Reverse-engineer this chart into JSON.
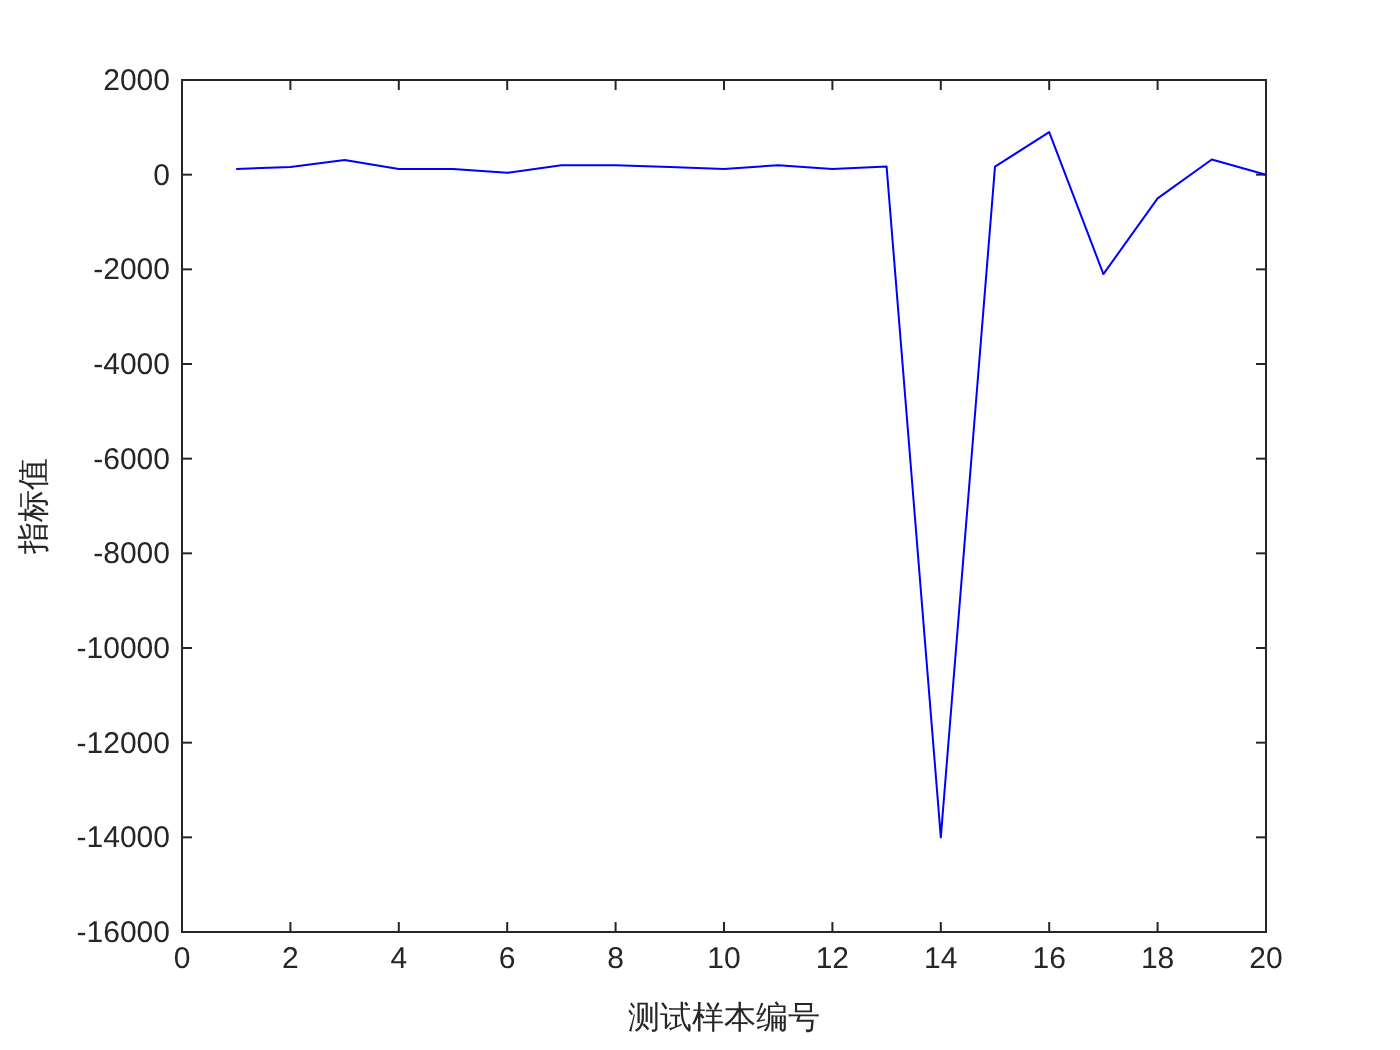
{
  "chart_data": {
    "type": "line",
    "xlabel": "测试样本编号",
    "ylabel": "指标值",
    "x": [
      1,
      2,
      3,
      4,
      5,
      6,
      7,
      8,
      9,
      10,
      11,
      12,
      13,
      14,
      15,
      16,
      17,
      18,
      19,
      20
    ],
    "series": [
      {
        "color": "#0000ff",
        "values": [
          120,
          160,
          310,
          120,
          120,
          40,
          200,
          200,
          160,
          120,
          200,
          120,
          170,
          -14000,
          170,
          900,
          -2100,
          -500,
          320,
          0
        ]
      }
    ],
    "xlim": [
      0,
      20
    ],
    "xticks": [
      0,
      2,
      4,
      6,
      8,
      10,
      12,
      14,
      16,
      18,
      20
    ],
    "ylim": [
      -16000,
      2000
    ],
    "yticks": [
      -16000,
      -14000,
      -12000,
      -10000,
      -8000,
      -6000,
      -4000,
      -2000,
      0,
      2000
    ],
    "grid": false,
    "marker": "none",
    "line_style": "solid"
  }
}
